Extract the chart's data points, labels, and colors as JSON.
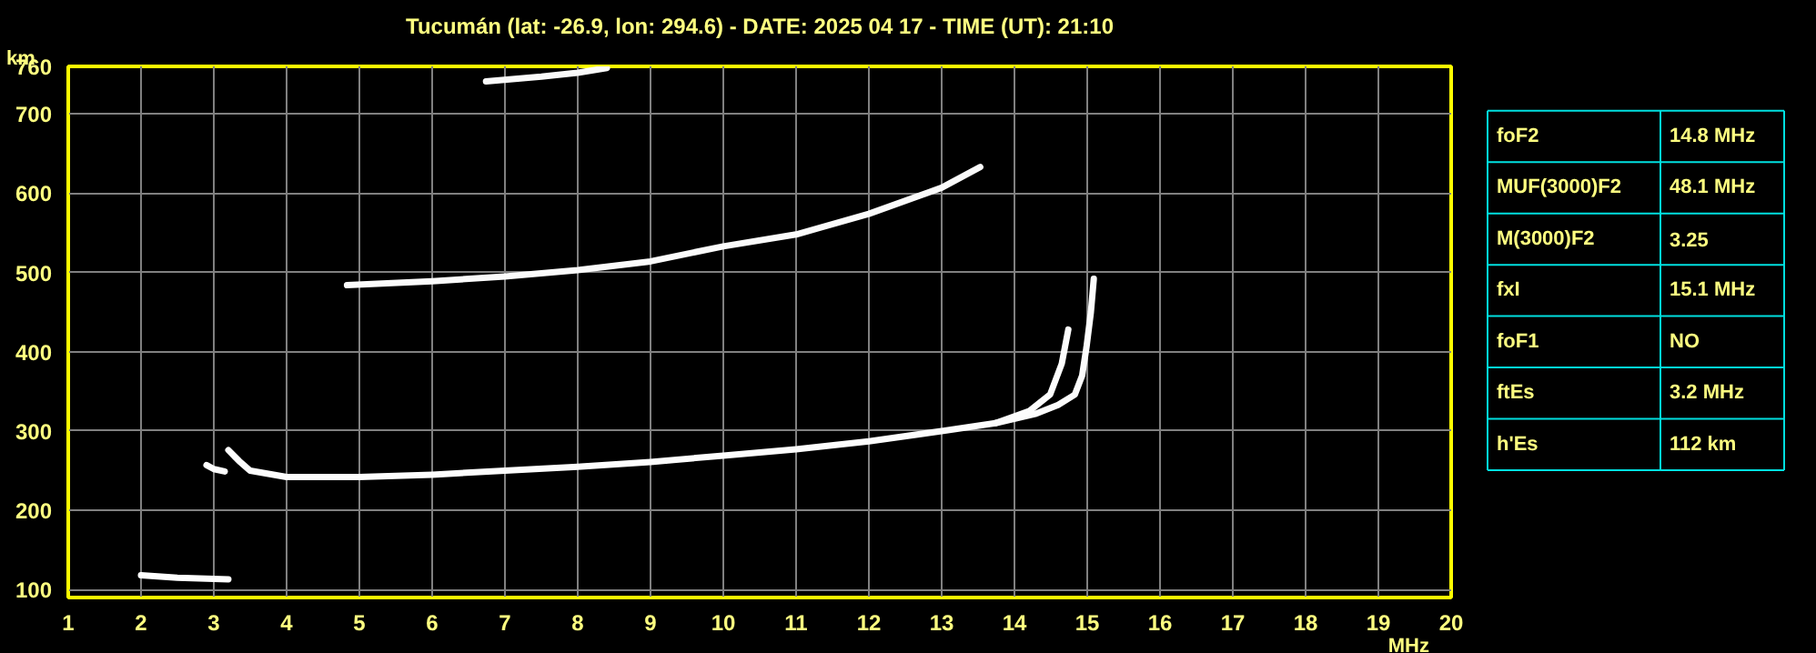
{
  "chart_data": [
    {
      "type": "line",
      "title": "Tucumán (lat: -26.9, lon: 294.6) - DATE: 2025 04 17 - TIME (UT): 21:10",
      "xlabel": "MHz",
      "ylabel": "km",
      "xlim": [
        1,
        20
      ],
      "xticks": [
        1,
        2,
        3,
        4,
        5,
        6,
        7,
        8,
        9,
        10,
        11,
        12,
        13,
        14,
        15,
        16,
        17,
        18,
        19,
        20
      ],
      "ylim": [
        90,
        760
      ],
      "yticks": [
        100,
        200,
        300,
        400,
        500,
        600,
        700,
        760
      ],
      "grid": true,
      "line_style": "solid",
      "marker": "none",
      "series": [
        {
          "color": "#ffffff",
          "x": [
            2.0,
            2.5,
            3.2
          ],
          "values": [
            118,
            115,
            113
          ]
        },
        {
          "color": "#fefefe",
          "x": [
            2.9,
            3.0,
            3.15
          ],
          "values": [
            257,
            252,
            249
          ]
        },
        {
          "color": "#fdfdfd",
          "x": [
            3.2,
            3.35,
            3.5,
            4,
            5,
            6,
            7,
            8,
            9,
            10,
            11,
            12,
            13,
            13.74,
            14.2,
            14.49,
            14.65,
            14.74
          ],
          "values": [
            276,
            262,
            250,
            242,
            242,
            245,
            250,
            255,
            261,
            269,
            277,
            287,
            300,
            310,
            325,
            346,
            385,
            428
          ]
        },
        {
          "color": "#fcfcfc",
          "x": [
            13.74,
            14.3,
            14.6,
            14.83,
            14.93,
            14.99,
            15.05,
            15.09
          ],
          "values": [
            310,
            322,
            333,
            346,
            370,
            406,
            450,
            492
          ]
        },
        {
          "color": "#fbfbfb",
          "x": [
            4.83,
            6,
            7,
            8,
            9,
            10,
            11,
            12,
            13,
            13.53
          ],
          "values": [
            484,
            489,
            495,
            503,
            514,
            533,
            548,
            574,
            607,
            633
          ]
        },
        {
          "color": "#fafafa",
          "x": [
            6.74,
            7.5,
            8.0,
            8.4
          ],
          "values": [
            741,
            747,
            752,
            758
          ]
        }
      ]
    },
    {
      "type": "other",
      "categories": [
        "foF2",
        "MUF(3000)F2",
        "M(3000)F2",
        "fxI",
        "foF1",
        "ftEs",
        "h'Es"
      ],
      "annotations": [
        "14.8 MHz",
        "48.1 MHz",
        "3.25",
        "15.1 MHz",
        "NO",
        "3.2 MHz",
        "112 km"
      ]
    }
  ]
}
